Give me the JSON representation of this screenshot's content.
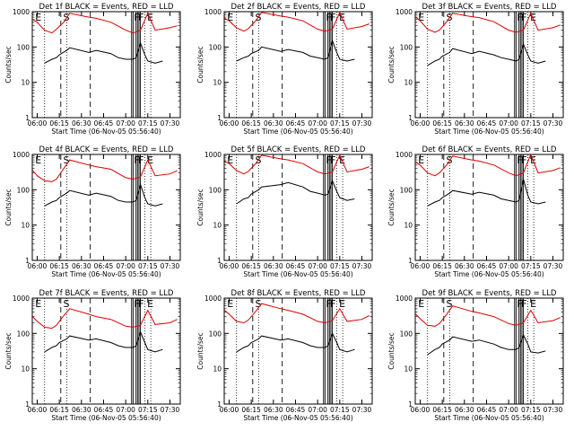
{
  "figure": {
    "ylabel": "Counts/sec",
    "xlabel": "Start Time (06-Nov-05 05:56:40)",
    "x_ticks": [
      "06:00",
      "06:15",
      "06:30",
      "06:45",
      "07:00",
      "07:15",
      "07:30"
    ],
    "y_ticks": [
      "1",
      "10",
      "100",
      "1000"
    ],
    "markers": [
      "E",
      "S",
      "F",
      "F",
      "E"
    ],
    "colors": {
      "events": "#000000",
      "lld": "#dd0000"
    }
  },
  "chart_data": [
    {
      "type": "line",
      "title": "Det 1f BLACK = Events, RED = LLD",
      "xlabel": "Start Time (06-Nov-05 05:56:40)",
      "ylabel": "Counts/sec",
      "xlim": [
        "05:56:40",
        "07:37"
      ],
      "ylim": [
        1,
        1000
      ],
      "yscale": "log",
      "series": [
        {
          "name": "Events",
          "color": "#000000",
          "x": [
            "06:05",
            "06:10",
            "06:13",
            "06:15",
            "06:20",
            "06:22",
            "06:35",
            "06:40",
            "06:50",
            "06:55",
            "07:00",
            "07:05",
            "07:07",
            "07:10",
            "07:13",
            "07:15",
            "07:20",
            "07:25"
          ],
          "values": [
            35,
            45,
            50,
            60,
            80,
            95,
            70,
            80,
            65,
            50,
            45,
            45,
            50,
            130,
            60,
            40,
            35,
            40
          ]
        },
        {
          "name": "LLD",
          "color": "#dd0000",
          "x": [
            "05:57",
            "06:00",
            "06:05",
            "06:10",
            "06:13",
            "06:18",
            "06:22",
            "06:35",
            "06:40",
            "06:50",
            "07:00",
            "07:05",
            "07:10",
            "07:15",
            "07:20",
            "07:30",
            "07:35"
          ],
          "values": [
            600,
            500,
            300,
            250,
            320,
            500,
            900,
            700,
            650,
            500,
            300,
            250,
            300,
            900,
            300,
            350,
            400
          ]
        }
      ]
    },
    {
      "type": "line",
      "title": "Det 2f BLACK = Events, RED = LLD",
      "xlabel": "Start Time (06-Nov-05 05:56:40)",
      "ylabel": "Counts/sec",
      "xlim": [
        "05:56:40",
        "07:37"
      ],
      "ylim": [
        1,
        1000
      ],
      "yscale": "log",
      "series": [
        {
          "name": "Events",
          "color": "#000000",
          "x": [
            "06:05",
            "06:10",
            "06:13",
            "06:15",
            "06:20",
            "06:22",
            "06:35",
            "06:40",
            "06:50",
            "06:55",
            "07:00",
            "07:05",
            "07:07",
            "07:10",
            "07:13",
            "07:15",
            "07:20",
            "07:25"
          ],
          "values": [
            40,
            50,
            55,
            65,
            80,
            100,
            75,
            85,
            70,
            55,
            50,
            45,
            50,
            150,
            70,
            45,
            40,
            45
          ]
        },
        {
          "name": "LLD",
          "color": "#dd0000",
          "x": [
            "05:57",
            "06:00",
            "06:05",
            "06:10",
            "06:13",
            "06:18",
            "06:22",
            "06:35",
            "06:40",
            "06:50",
            "07:00",
            "07:05",
            "07:10",
            "07:15",
            "07:20",
            "07:30",
            "07:35"
          ],
          "values": [
            650,
            550,
            350,
            280,
            330,
            550,
            950,
            750,
            700,
            550,
            320,
            280,
            320,
            950,
            320,
            380,
            450
          ]
        }
      ]
    },
    {
      "type": "line",
      "title": "Det 3f BLACK = Events, RED = LLD",
      "xlabel": "Start Time (06-Nov-05 05:56:40)",
      "ylabel": "Counts/sec",
      "xlim": [
        "05:56:40",
        "07:37"
      ],
      "ylim": [
        1,
        1000
      ],
      "yscale": "log",
      "series": [
        {
          "name": "Events",
          "color": "#000000",
          "x": [
            "06:05",
            "06:10",
            "06:13",
            "06:15",
            "06:20",
            "06:22",
            "06:35",
            "06:40",
            "06:50",
            "06:55",
            "07:00",
            "07:05",
            "07:07",
            "07:10",
            "07:13",
            "07:15",
            "07:20",
            "07:25"
          ],
          "values": [
            30,
            40,
            45,
            55,
            70,
            90,
            65,
            75,
            60,
            50,
            45,
            40,
            45,
            120,
            60,
            40,
            35,
            40
          ]
        },
        {
          "name": "LLD",
          "color": "#dd0000",
          "x": [
            "05:57",
            "06:00",
            "06:05",
            "06:10",
            "06:13",
            "06:18",
            "06:22",
            "06:35",
            "06:40",
            "06:50",
            "07:00",
            "07:05",
            "07:10",
            "07:15",
            "07:20",
            "07:30",
            "07:35"
          ],
          "values": [
            700,
            550,
            320,
            260,
            300,
            520,
            900,
            720,
            680,
            520,
            300,
            260,
            300,
            900,
            300,
            350,
            420
          ]
        }
      ]
    },
    {
      "type": "line",
      "title": "Det 4f BLACK = Events, RED = LLD",
      "xlabel": "Start Time (06-Nov-05 05:56:40)",
      "ylabel": "Counts/sec",
      "xlim": [
        "05:56:40",
        "07:37"
      ],
      "ylim": [
        1,
        1000
      ],
      "yscale": "log",
      "series": [
        {
          "name": "Events",
          "color": "#000000",
          "x": [
            "06:05",
            "06:10",
            "06:13",
            "06:15",
            "06:20",
            "06:22",
            "06:35",
            "06:40",
            "06:50",
            "06:55",
            "07:00",
            "07:05",
            "07:07",
            "07:10",
            "07:13",
            "07:15",
            "07:20",
            "07:25"
          ],
          "values": [
            35,
            45,
            50,
            60,
            80,
            95,
            70,
            80,
            65,
            50,
            45,
            45,
            50,
            140,
            60,
            40,
            35,
            40
          ]
        },
        {
          "name": "LLD",
          "color": "#dd0000",
          "x": [
            "05:57",
            "06:00",
            "06:05",
            "06:10",
            "06:13",
            "06:18",
            "06:22",
            "06:35",
            "06:40",
            "06:50",
            "07:00",
            "07:05",
            "07:10",
            "07:15",
            "07:20",
            "07:30",
            "07:35"
          ],
          "values": [
            350,
            250,
            180,
            170,
            200,
            400,
            700,
            500,
            450,
            380,
            220,
            200,
            230,
            700,
            250,
            280,
            350
          ]
        }
      ]
    },
    {
      "type": "line",
      "title": "Det 5f BLACK = Events, RED = LLD",
      "xlabel": "Start Time (06-Nov-05 05:56:40)",
      "ylabel": "Counts/sec",
      "xlim": [
        "05:56:40",
        "07:37"
      ],
      "ylim": [
        1,
        1000
      ],
      "yscale": "log",
      "series": [
        {
          "name": "Events",
          "color": "#000000",
          "x": [
            "06:05",
            "06:10",
            "06:13",
            "06:15",
            "06:20",
            "06:22",
            "06:35",
            "06:40",
            "06:50",
            "06:55",
            "07:00",
            "07:05",
            "07:07",
            "07:10",
            "07:13",
            "07:15",
            "07:20",
            "07:25"
          ],
          "values": [
            40,
            55,
            60,
            75,
            100,
            120,
            140,
            160,
            120,
            90,
            80,
            70,
            75,
            180,
            90,
            60,
            50,
            55
          ]
        },
        {
          "name": "LLD",
          "color": "#dd0000",
          "x": [
            "05:57",
            "06:00",
            "06:05",
            "06:10",
            "06:13",
            "06:18",
            "06:22",
            "06:35",
            "06:40",
            "06:50",
            "07:00",
            "07:05",
            "07:10",
            "07:15",
            "07:20",
            "07:30",
            "07:35"
          ],
          "values": [
            650,
            550,
            350,
            280,
            330,
            550,
            950,
            750,
            700,
            550,
            320,
            280,
            320,
            950,
            320,
            380,
            450
          ]
        }
      ]
    },
    {
      "type": "line",
      "title": "Det 6f BLACK = Events, RED = LLD",
      "xlabel": "Start Time (06-Nov-05 05:56:40)",
      "ylabel": "Counts/sec",
      "xlim": [
        "05:56:40",
        "07:37"
      ],
      "ylim": [
        1,
        1000
      ],
      "yscale": "log",
      "series": [
        {
          "name": "Events",
          "color": "#000000",
          "x": [
            "06:05",
            "06:10",
            "06:13",
            "06:15",
            "06:20",
            "06:22",
            "06:35",
            "06:40",
            "06:50",
            "06:55",
            "07:00",
            "07:05",
            "07:07",
            "07:10",
            "07:13",
            "07:15",
            "07:20",
            "07:25"
          ],
          "values": [
            35,
            45,
            50,
            60,
            80,
            95,
            75,
            85,
            70,
            55,
            50,
            45,
            50,
            200,
            70,
            45,
            40,
            45
          ]
        },
        {
          "name": "LLD",
          "color": "#dd0000",
          "x": [
            "05:57",
            "06:00",
            "06:05",
            "06:10",
            "06:13",
            "06:18",
            "06:22",
            "06:35",
            "06:40",
            "06:50",
            "07:00",
            "07:05",
            "07:10",
            "07:15",
            "07:20",
            "07:30",
            "07:35"
          ],
          "values": [
            600,
            500,
            300,
            250,
            300,
            500,
            900,
            700,
            650,
            500,
            300,
            250,
            300,
            1000,
            300,
            350,
            420
          ]
        }
      ]
    },
    {
      "type": "line",
      "title": "Det 7f BLACK = Events, RED = LLD",
      "xlabel": "Start Time (06-Nov-05 05:56:40)",
      "ylabel": "Counts/sec",
      "xlim": [
        "05:56:40",
        "07:37"
      ],
      "ylim": [
        1,
        1000
      ],
      "yscale": "log",
      "series": [
        {
          "name": "Events",
          "color": "#000000",
          "x": [
            "06:05",
            "06:10",
            "06:13",
            "06:15",
            "06:20",
            "06:22",
            "06:35",
            "06:40",
            "06:50",
            "06:55",
            "07:00",
            "07:05",
            "07:07",
            "07:10",
            "07:13",
            "07:15",
            "07:20",
            "07:25"
          ],
          "values": [
            30,
            40,
            45,
            55,
            70,
            85,
            65,
            70,
            55,
            45,
            40,
            40,
            45,
            110,
            55,
            35,
            30,
            35
          ]
        },
        {
          "name": "LLD",
          "color": "#dd0000",
          "x": [
            "05:57",
            "06:00",
            "06:05",
            "06:10",
            "06:13",
            "06:18",
            "06:22",
            "06:35",
            "06:40",
            "06:50",
            "07:00",
            "07:05",
            "07:10",
            "07:15",
            "07:20",
            "07:30",
            "07:35"
          ],
          "values": [
            300,
            220,
            150,
            140,
            170,
            320,
            500,
            350,
            300,
            250,
            160,
            150,
            170,
            450,
            180,
            200,
            250
          ]
        }
      ]
    },
    {
      "type": "line",
      "title": "Det 8f BLACK = Events, RED = LLD",
      "xlabel": "Start Time (06-Nov-05 05:56:40)",
      "ylabel": "Counts/sec",
      "xlim": [
        "05:56:40",
        "07:37"
      ],
      "ylim": [
        1,
        1000
      ],
      "yscale": "log",
      "series": [
        {
          "name": "Events",
          "color": "#000000",
          "x": [
            "06:05",
            "06:10",
            "06:13",
            "06:15",
            "06:20",
            "06:22",
            "06:35",
            "06:40",
            "06:50",
            "06:55",
            "07:00",
            "07:05",
            "07:07",
            "07:10",
            "07:13",
            "07:15",
            "07:20",
            "07:25"
          ],
          "values": [
            30,
            40,
            45,
            55,
            70,
            85,
            65,
            70,
            55,
            45,
            40,
            40,
            45,
            100,
            55,
            35,
            30,
            35
          ]
        },
        {
          "name": "LLD",
          "color": "#dd0000",
          "x": [
            "05:57",
            "06:00",
            "06:05",
            "06:10",
            "06:13",
            "06:18",
            "06:22",
            "06:35",
            "06:40",
            "06:50",
            "07:00",
            "07:05",
            "07:10",
            "07:15",
            "07:20",
            "07:30",
            "07:35"
          ],
          "values": [
            450,
            350,
            220,
            200,
            240,
            420,
            700,
            500,
            450,
            350,
            220,
            200,
            230,
            500,
            220,
            250,
            320
          ]
        }
      ]
    },
    {
      "type": "line",
      "title": "Det 9f BLACK = Events, RED = LLD",
      "xlabel": "Start Time (06-Nov-05 05:56:40)",
      "ylabel": "Counts/sec",
      "xlim": [
        "05:56:40",
        "07:37"
      ],
      "ylim": [
        1,
        1000
      ],
      "yscale": "log",
      "series": [
        {
          "name": "Events",
          "color": "#000000",
          "x": [
            "06:05",
            "06:10",
            "06:13",
            "06:15",
            "06:20",
            "06:22",
            "06:35",
            "06:40",
            "06:50",
            "06:55",
            "07:00",
            "07:05",
            "07:07",
            "07:10",
            "07:13",
            "07:15",
            "07:20",
            "07:25"
          ],
          "values": [
            25,
            35,
            40,
            50,
            65,
            80,
            60,
            65,
            50,
            40,
            35,
            35,
            40,
            90,
            50,
            30,
            28,
            32
          ]
        },
        {
          "name": "LLD",
          "color": "#dd0000",
          "x": [
            "05:57",
            "06:00",
            "06:05",
            "06:10",
            "06:13",
            "06:18",
            "06:22",
            "06:35",
            "06:40",
            "06:50",
            "07:00",
            "07:05",
            "07:10",
            "07:15",
            "07:20",
            "07:30",
            "07:35"
          ],
          "values": [
            350,
            260,
            170,
            160,
            190,
            350,
            600,
            420,
            380,
            300,
            190,
            170,
            200,
            450,
            200,
            230,
            280
          ]
        }
      ]
    }
  ]
}
